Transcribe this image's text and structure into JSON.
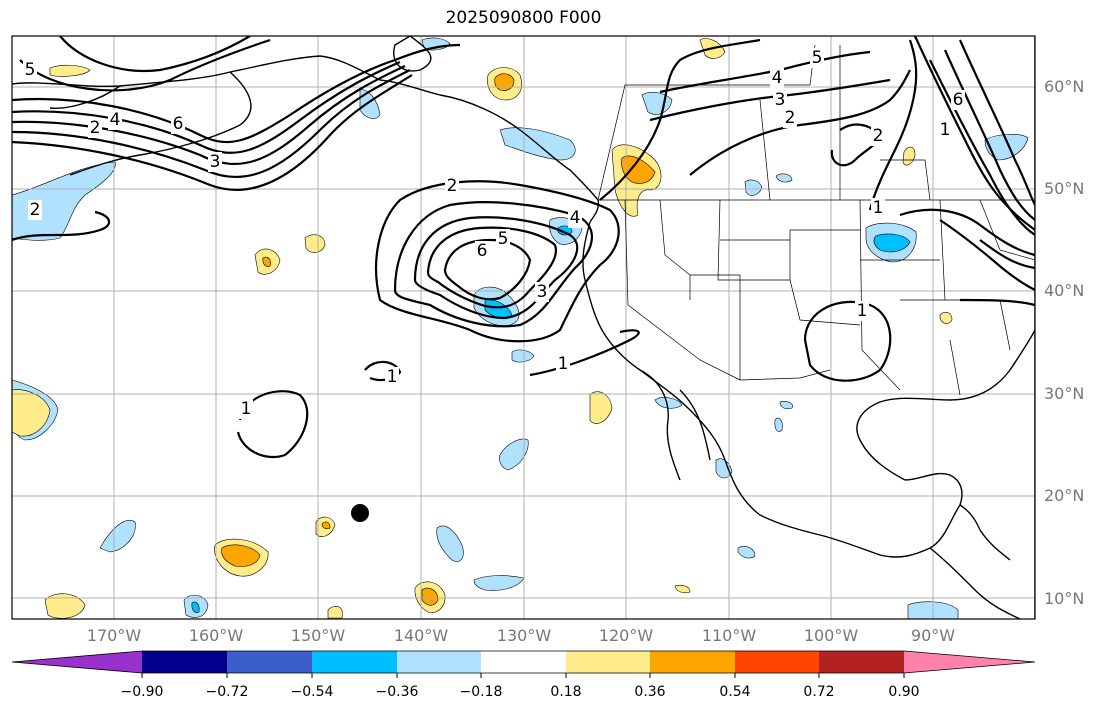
{
  "title": "2025090800 F000",
  "lat_labels": [
    "60°N",
    "50°N",
    "40°N",
    "30°N",
    "20°N",
    "10°N"
  ],
  "lon_labels": [
    "170°W",
    "160°W",
    "150°W",
    "140°W",
    "130°W",
    "120°W",
    "110°W",
    "100°W",
    "90°W"
  ],
  "contour_labels": [
    "5",
    "2",
    "4",
    "6",
    "3",
    "2",
    "6",
    "5",
    "4",
    "3",
    "1",
    "1",
    "1",
    "1",
    "5",
    "4",
    "3",
    "2",
    "6",
    "2",
    "1",
    "2",
    "1"
  ],
  "colorbar": {
    "tick_labels": [
      "−0.90",
      "−0.72",
      "−0.54",
      "−0.36",
      "−0.18",
      "0.18",
      "0.36",
      "0.54",
      "0.72",
      "0.90"
    ],
    "colors": [
      "#9932cc",
      "#00008b",
      "#3a5fcd",
      "#00bfff",
      "#b0e2ff",
      "#ffffff",
      "#ffec8b",
      "#ffa500",
      "#ff4500",
      "#b22222",
      "#ff82ab"
    ]
  },
  "fill_colors": {
    "light_blue": "#b0e2ff",
    "blue": "#00bfff",
    "yellow": "#ffec8b",
    "orange": "#ffa500"
  },
  "marker_color": "#000000"
}
